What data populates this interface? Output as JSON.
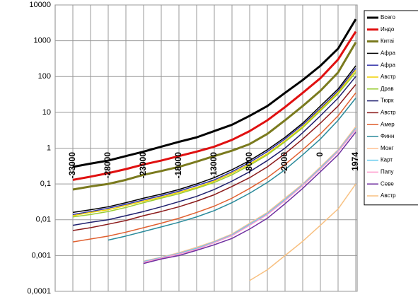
{
  "chart_data": {
    "type": "line",
    "yscale": "log",
    "grid": true,
    "legend": "right",
    "categories": [
      "-33000",
      null,
      "-28000",
      null,
      "-23000",
      null,
      "-18000",
      null,
      "-13000",
      null,
      "-8000",
      null,
      "-2000",
      null,
      "0",
      null,
      "1974"
    ],
    "ylim": [
      0.0001,
      10000
    ],
    "yticks": [
      {
        "value": 0.0001,
        "label": "0,0001"
      },
      {
        "value": 0.001,
        "label": "0,001"
      },
      {
        "value": 0.01,
        "label": "0,01"
      },
      {
        "value": 0.1,
        "label": "0,1"
      },
      1,
      10,
      100,
      1000,
      10000
    ],
    "series": [
      {
        "name": "Всего",
        "color": "#000000",
        "width": 3,
        "values": [
          0.3,
          0.37,
          0.45,
          0.6,
          0.8,
          1.1,
          1.5,
          2,
          3,
          4.5,
          8,
          15,
          35,
          80,
          200,
          600,
          4000
        ]
      },
      {
        "name": "Индо",
        "color": "#e01010",
        "width": 3,
        "values": [
          0.13,
          0.16,
          0.2,
          0.26,
          0.35,
          0.45,
          0.6,
          0.8,
          1.1,
          1.7,
          3,
          6,
          14,
          35,
          90,
          300,
          1800
        ]
      },
      {
        "name": "Китаі",
        "color": "#7a7a1e",
        "width": 3,
        "values": [
          0.07,
          0.085,
          0.1,
          0.13,
          0.18,
          0.23,
          0.3,
          0.42,
          0.6,
          0.85,
          1.3,
          2.5,
          6,
          15,
          40,
          130,
          900
        ]
      },
      {
        "name": "Афра",
        "color": "#000000",
        "width": 1.5,
        "values": [
          0.016,
          0.019,
          0.023,
          0.03,
          0.04,
          0.052,
          0.07,
          0.1,
          0.15,
          0.25,
          0.45,
          0.9,
          2,
          5,
          15,
          45,
          200
        ]
      },
      {
        "name": "Афра",
        "color": "#3333aa",
        "width": 1.5,
        "values": [
          0.014,
          0.017,
          0.021,
          0.027,
          0.036,
          0.047,
          0.063,
          0.09,
          0.13,
          0.22,
          0.4,
          0.8,
          1.8,
          4.5,
          13,
          40,
          170
        ]
      },
      {
        "name": "Австр",
        "color": "#f0d000",
        "width": 1.5,
        "values": [
          0.013,
          0.016,
          0.019,
          0.025,
          0.033,
          0.043,
          0.058,
          0.08,
          0.12,
          0.2,
          0.36,
          0.7,
          1.6,
          4,
          12,
          36,
          150
        ]
      },
      {
        "name": "Драв",
        "color": "#99cc33",
        "width": 1.5,
        "values": [
          0.012,
          0.014,
          0.017,
          0.022,
          0.03,
          0.04,
          0.053,
          0.075,
          0.11,
          0.18,
          0.33,
          0.65,
          1.5,
          3.7,
          11,
          33,
          130
        ]
      },
      {
        "name": "Тюрк",
        "color": "#1f1f6e",
        "width": 1.5,
        "values": [
          0.007,
          0.0085,
          0.01,
          0.013,
          0.017,
          0.023,
          0.032,
          0.045,
          0.07,
          0.12,
          0.22,
          0.45,
          1,
          2.7,
          8,
          25,
          100
        ]
      },
      {
        "name": "Австр",
        "color": "#8b1a1a",
        "width": 1.5,
        "values": [
          0.005,
          0.006,
          0.0075,
          0.0095,
          0.013,
          0.017,
          0.023,
          0.033,
          0.05,
          0.085,
          0.15,
          0.3,
          0.7,
          1.8,
          5,
          15,
          60
        ]
      },
      {
        "name": "Амер",
        "color": "#e06030",
        "width": 1.5,
        "values": [
          0.0024,
          0.0029,
          0.0035,
          0.0045,
          0.006,
          0.008,
          0.011,
          0.016,
          0.024,
          0.04,
          0.075,
          0.15,
          0.35,
          0.9,
          2.5,
          8,
          35
        ]
      },
      {
        "name": "Финн",
        "color": "#2a8a9a",
        "width": 1.5,
        "values": [
          null,
          null,
          0.0027,
          0.0035,
          0.0047,
          0.0063,
          0.0085,
          0.012,
          0.018,
          0.03,
          0.055,
          0.11,
          0.25,
          0.65,
          1.8,
          6,
          25
        ]
      },
      {
        "name": "Монг",
        "color": "#ffc090",
        "width": 1.5,
        "values": [
          null,
          null,
          null,
          null,
          0.0007,
          0.0009,
          0.0012,
          0.0017,
          0.0025,
          0.004,
          0.008,
          0.016,
          0.04,
          0.1,
          0.3,
          0.9,
          4
        ]
      },
      {
        "name": "Карт",
        "color": "#66ccee",
        "width": 1.5,
        "values": [
          null,
          null,
          null,
          null,
          0.00068,
          0.00088,
          0.00115,
          0.0016,
          0.0024,
          0.0038,
          0.0075,
          0.015,
          0.037,
          0.095,
          0.28,
          0.85,
          3.6
        ]
      },
      {
        "name": "Папу",
        "color": "#ff99cc",
        "width": 1.5,
        "values": [
          null,
          null,
          null,
          null,
          0.00065,
          0.00085,
          0.0011,
          0.0015,
          0.0023,
          0.0036,
          0.007,
          0.014,
          0.034,
          0.09,
          0.26,
          0.8,
          3.3
        ]
      },
      {
        "name": "Севе",
        "color": "#7030a0",
        "width": 1.5,
        "values": [
          null,
          null,
          null,
          null,
          0.0006,
          0.0008,
          0.001,
          0.0014,
          0.002,
          0.003,
          0.0055,
          0.011,
          0.028,
          0.075,
          0.22,
          0.65,
          2.8
        ]
      },
      {
        "name": "Австр",
        "color": "#f8c080",
        "width": 1.5,
        "values": [
          null,
          null,
          null,
          null,
          null,
          null,
          null,
          null,
          null,
          null,
          0.0002,
          0.0004,
          0.001,
          0.0025,
          0.007,
          0.02,
          0.1
        ]
      }
    ]
  }
}
